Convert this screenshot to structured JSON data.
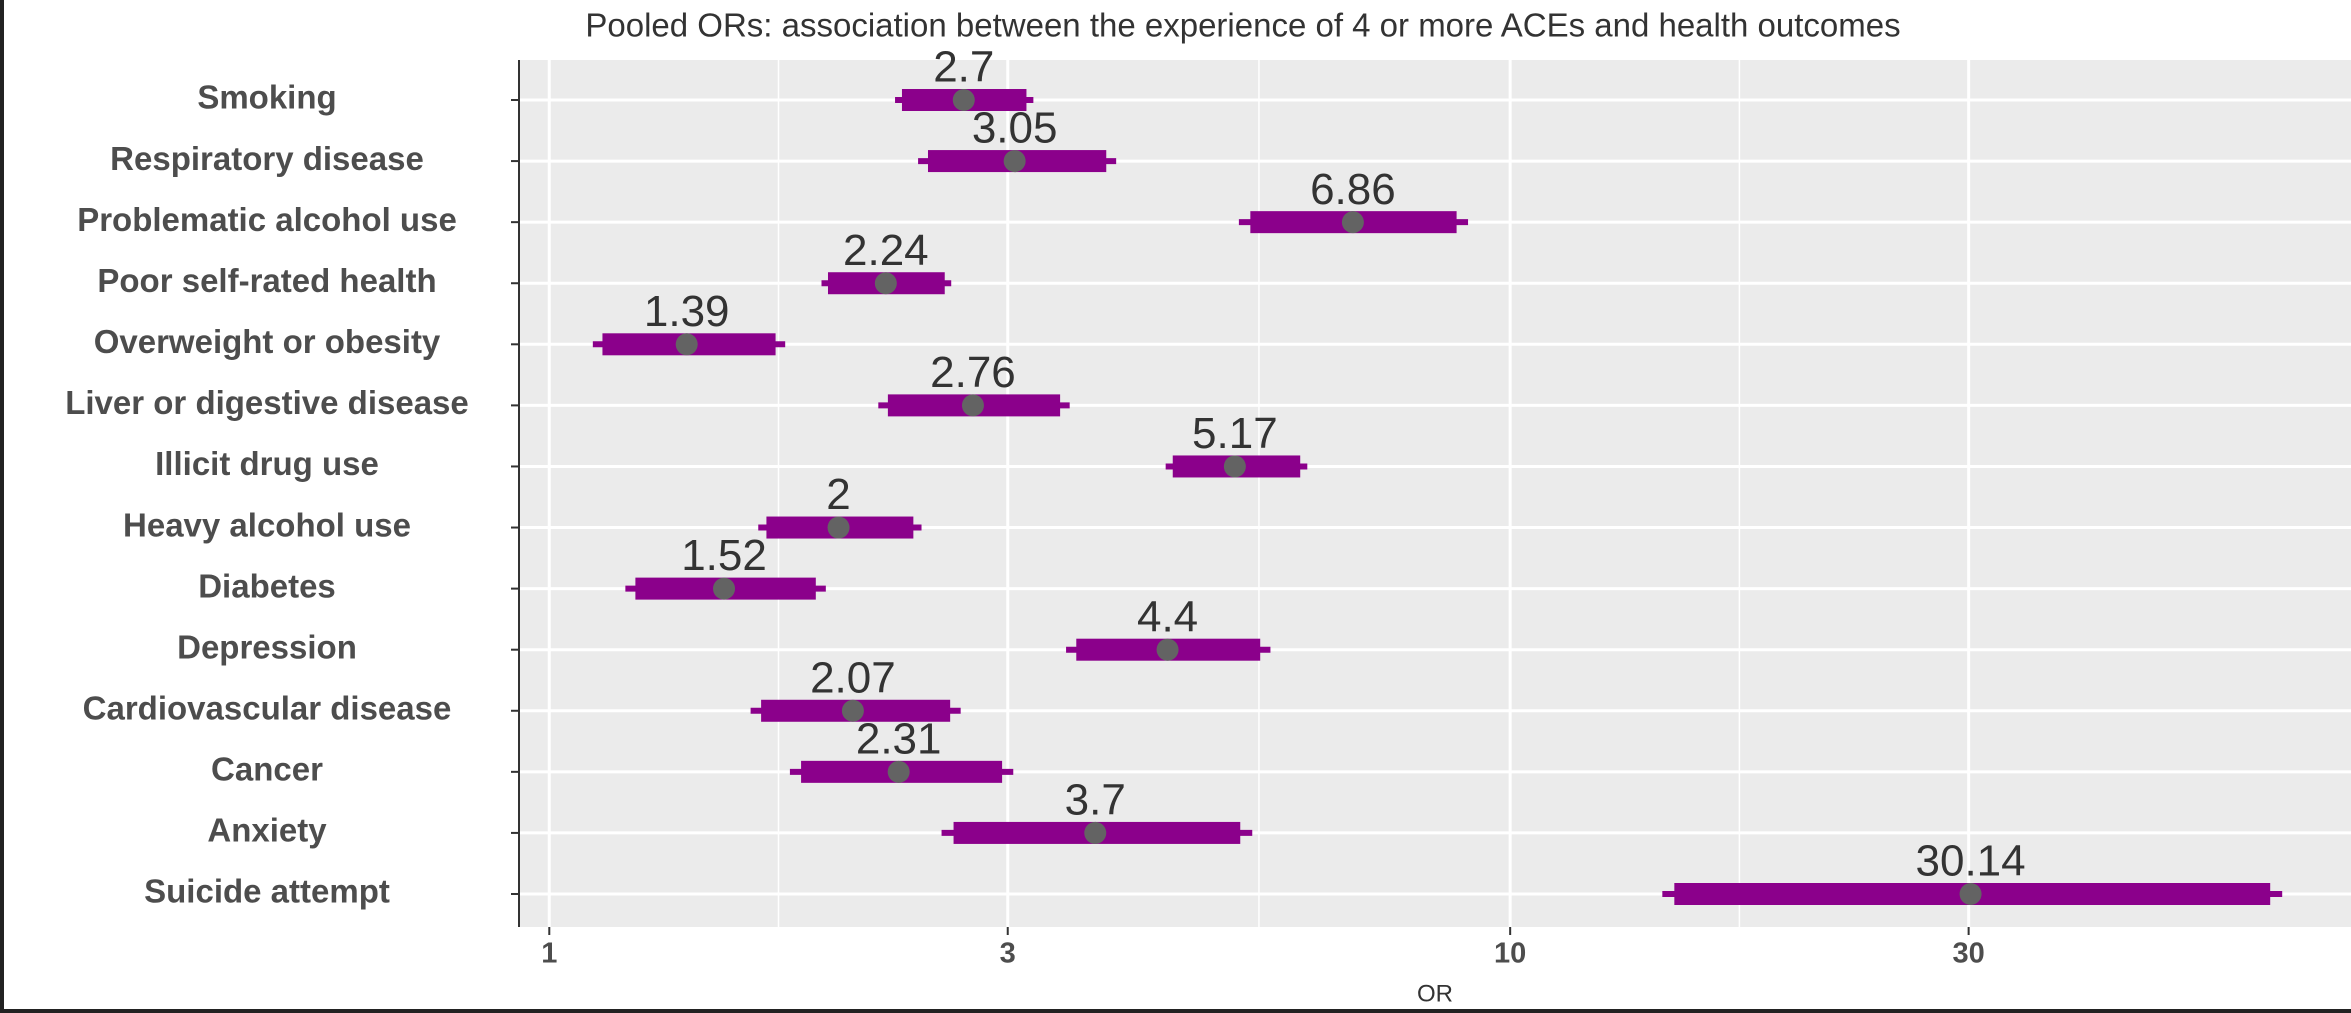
{
  "chart_data": {
    "type": "forest",
    "title": "Pooled ORs: association between the experience of 4 or more ACEs and health outcomes",
    "x_label": "OR",
    "categories": [
      "Smoking",
      "Respiratory disease",
      "Problematic alcohol use",
      "Poor self-rated health",
      "Overweight or obesity",
      "Liver or digestive disease",
      "Illicit drug use",
      "Heavy alcohol use",
      "Diabetes",
      "Depression",
      "Cardiovascular disease",
      "Cancer",
      "Anxiety",
      "Suicide attempt"
    ],
    "values": [
      2.7,
      3.05,
      6.86,
      2.24,
      1.39,
      2.76,
      5.17,
      2,
      1.52,
      4.4,
      2.07,
      2.31,
      3.7,
      30.14
    ],
    "ci_lower": [
      2.29,
      2.42,
      5.22,
      1.92,
      1.11,
      2.2,
      4.38,
      1.65,
      1.2,
      3.45,
      1.62,
      1.78,
      2.56,
      14.4
    ],
    "ci_upper": [
      3.19,
      3.89,
      9.04,
      2.62,
      1.76,
      3.48,
      6.15,
      2.44,
      1.94,
      5.63,
      2.68,
      3.04,
      5.39,
      63.6
    ],
    "bar_color": "#8b008b",
    "point_color": "#636363",
    "xlim": [
      0.93,
      75
    ],
    "xticks": [
      1,
      3,
      10,
      30
    ],
    "xscale": "log",
    "grid": true
  }
}
